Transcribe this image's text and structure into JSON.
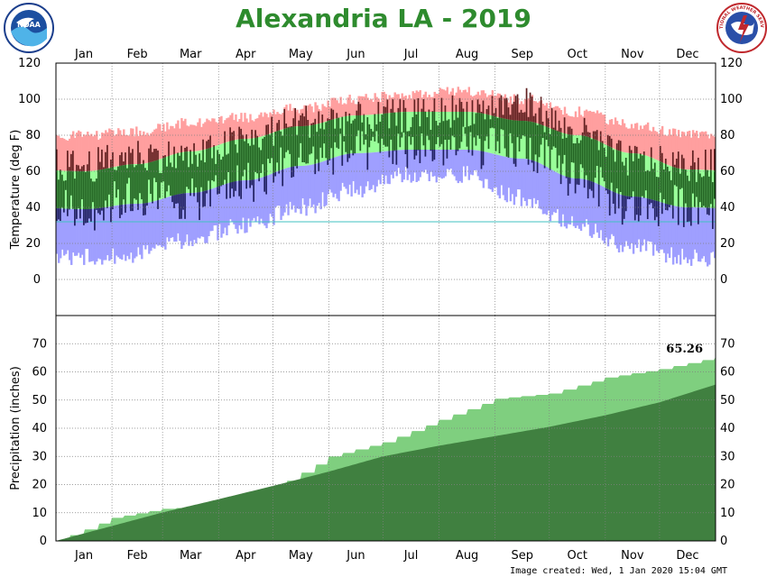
{
  "header": {
    "title": "Alexandria LA - 2019",
    "footer": "Image created: Wed, 1 Jan 2020 15:04 GMT"
  },
  "logos": {
    "left": {
      "icon": "noaa-logo",
      "text": "NOAA"
    },
    "right": {
      "icon": "nws-logo",
      "text": "NATIONAL WEATHER SERVICE"
    }
  },
  "colors": {
    "record_band": "#ff9f9f",
    "normal_band": "#99ff99",
    "record_low_band": "#9f9fff",
    "actual_bar": "#206020",
    "actual_in_record": "#602020",
    "actual_in_low": "#202060",
    "precip_normal": "#408040",
    "precip_actual": "#7fcf7f",
    "precip_deficit": "#a09080",
    "freeze_line": "#40c0c0"
  },
  "chart_data": [
    {
      "type": "area",
      "name": "temperature",
      "ylabel": "Temperature (deg F)",
      "ylim": [
        -20,
        120
      ],
      "yticks": [
        0,
        20,
        40,
        60,
        80,
        100,
        120
      ],
      "grid": true,
      "months": [
        "Jan",
        "Feb",
        "Mar",
        "Apr",
        "May",
        "Jun",
        "Jul",
        "Aug",
        "Sep",
        "Oct",
        "Nov",
        "Dec"
      ],
      "freeze_line": 32,
      "monthly_record_high": [
        80,
        82,
        87,
        90,
        95,
        100,
        103,
        104,
        100,
        93,
        86,
        80
      ],
      "monthly_normal_high": [
        60,
        64,
        71,
        78,
        85,
        91,
        93,
        93,
        88,
        80,
        70,
        61
      ],
      "monthly_normal_low": [
        39,
        42,
        48,
        55,
        63,
        70,
        72,
        72,
        67,
        56,
        46,
        40
      ],
      "monthly_record_low": [
        12,
        14,
        22,
        30,
        40,
        50,
        58,
        58,
        45,
        30,
        18,
        12
      ],
      "monthly_actual_high": [
        63,
        69,
        68,
        77,
        88,
        89,
        91,
        94,
        97,
        81,
        66,
        63
      ],
      "monthly_actual_low": [
        38,
        46,
        44,
        54,
        66,
        71,
        73,
        73,
        72,
        57,
        40,
        41
      ]
    },
    {
      "type": "area",
      "name": "precipitation",
      "ylabel": "Precipitation (inches)",
      "ylim": [
        0,
        80
      ],
      "yticks": [
        0,
        10,
        20,
        30,
        40,
        50,
        60,
        70
      ],
      "grid": true,
      "annotation": "65.26",
      "month_end_actual": [
        8.2,
        11.4,
        12.5,
        18.5,
        30.0,
        35.0,
        43.0,
        50.5,
        52.3,
        58.0,
        61.0,
        65.26
      ],
      "month_end_normal": [
        5.3,
        10.1,
        14.8,
        19.5,
        24.6,
        30.0,
        33.8,
        37.2,
        40.5,
        44.6,
        49.2,
        55.5
      ]
    }
  ]
}
